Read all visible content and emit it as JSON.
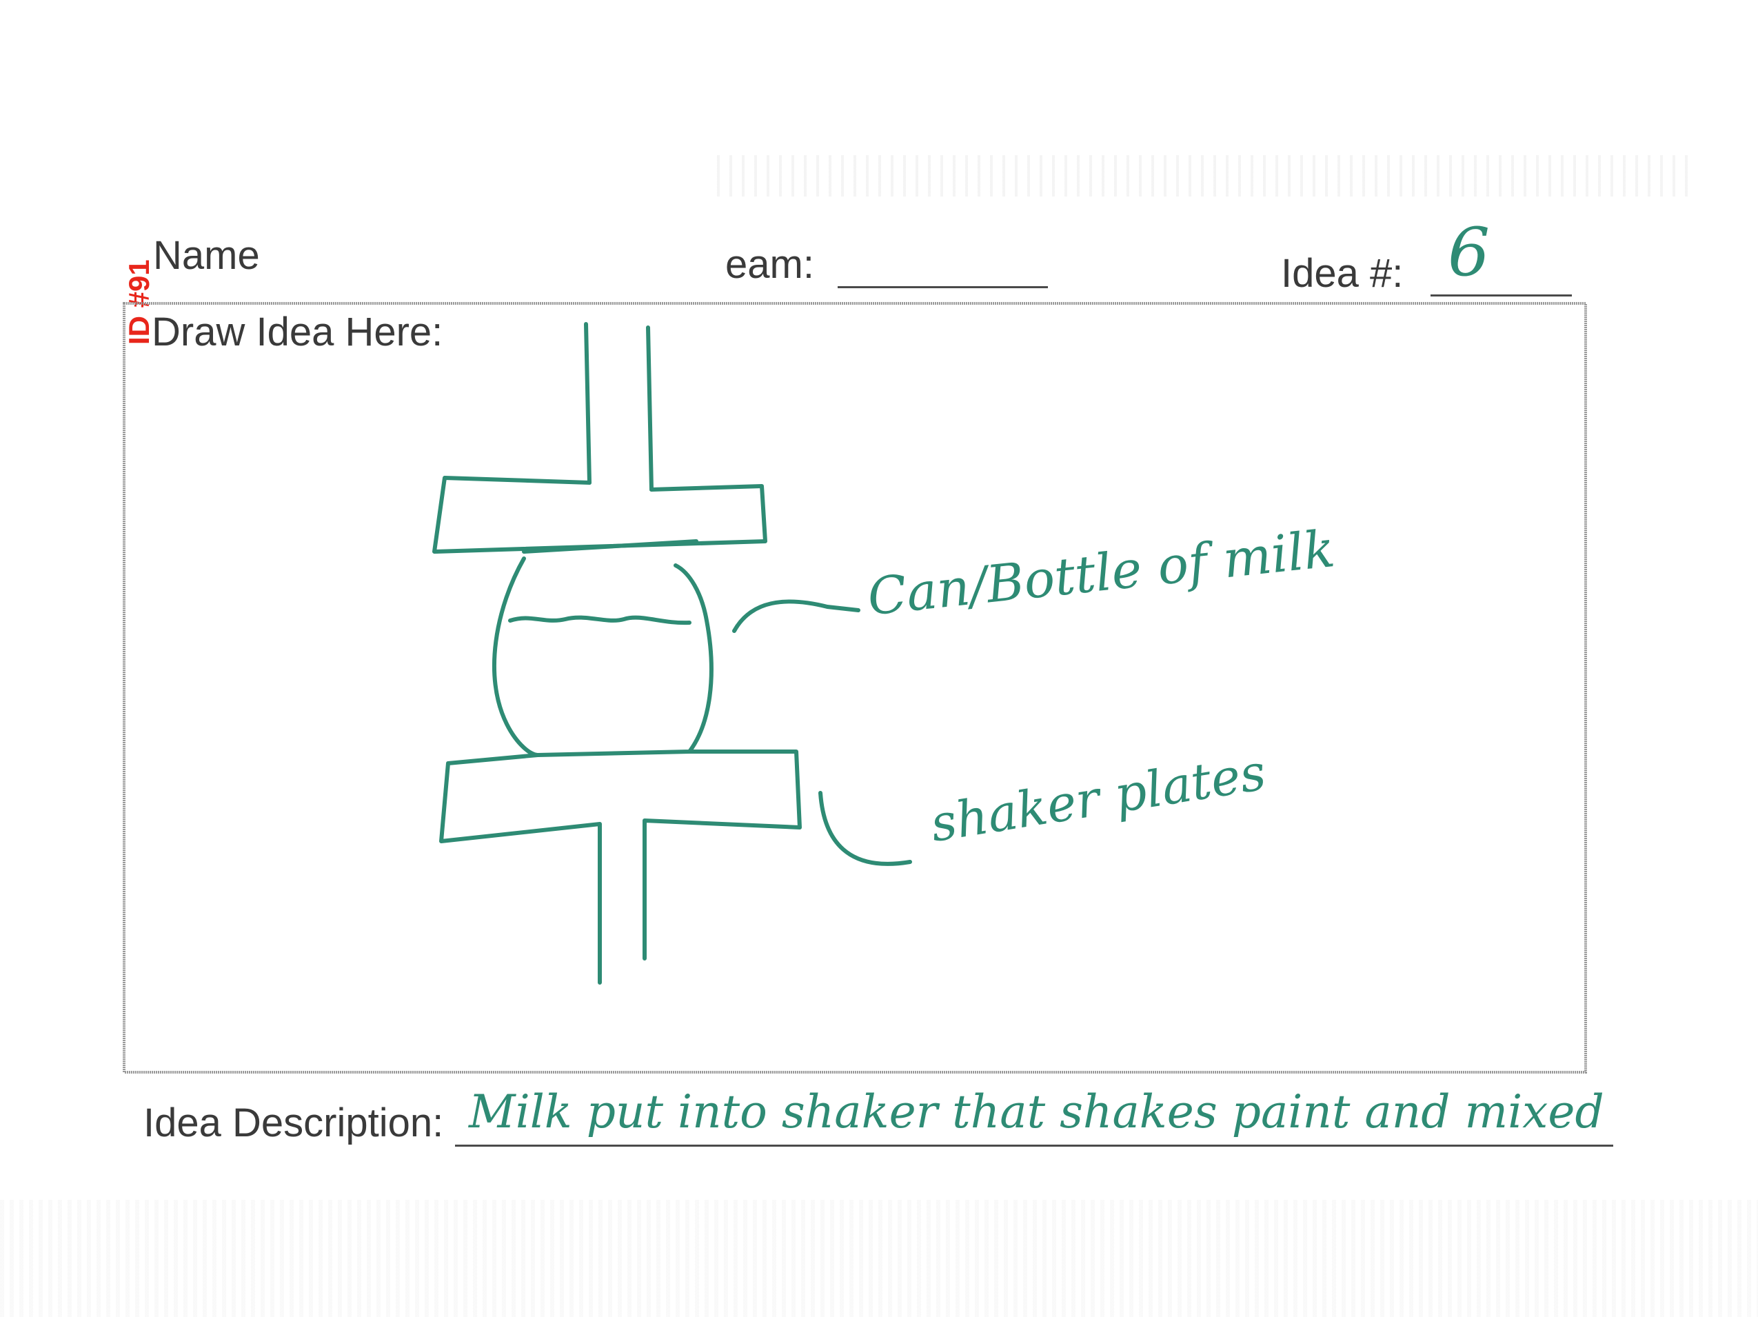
{
  "form": {
    "id_stamp": "ID #91",
    "name_label": "Name",
    "team_label": "eam:",
    "idea_number_label": "Idea #:",
    "idea_number_value": "6",
    "draw_label": "Draw Idea Here:",
    "description_label": "Idea Description:",
    "description_value": "Milk put into shaker that shakes paint and mixed"
  },
  "sketch": {
    "annotations": [
      {
        "text": "Can/Bottle of milk"
      },
      {
        "text": "shaker plates"
      }
    ],
    "ink_color": "#2e8b74"
  }
}
